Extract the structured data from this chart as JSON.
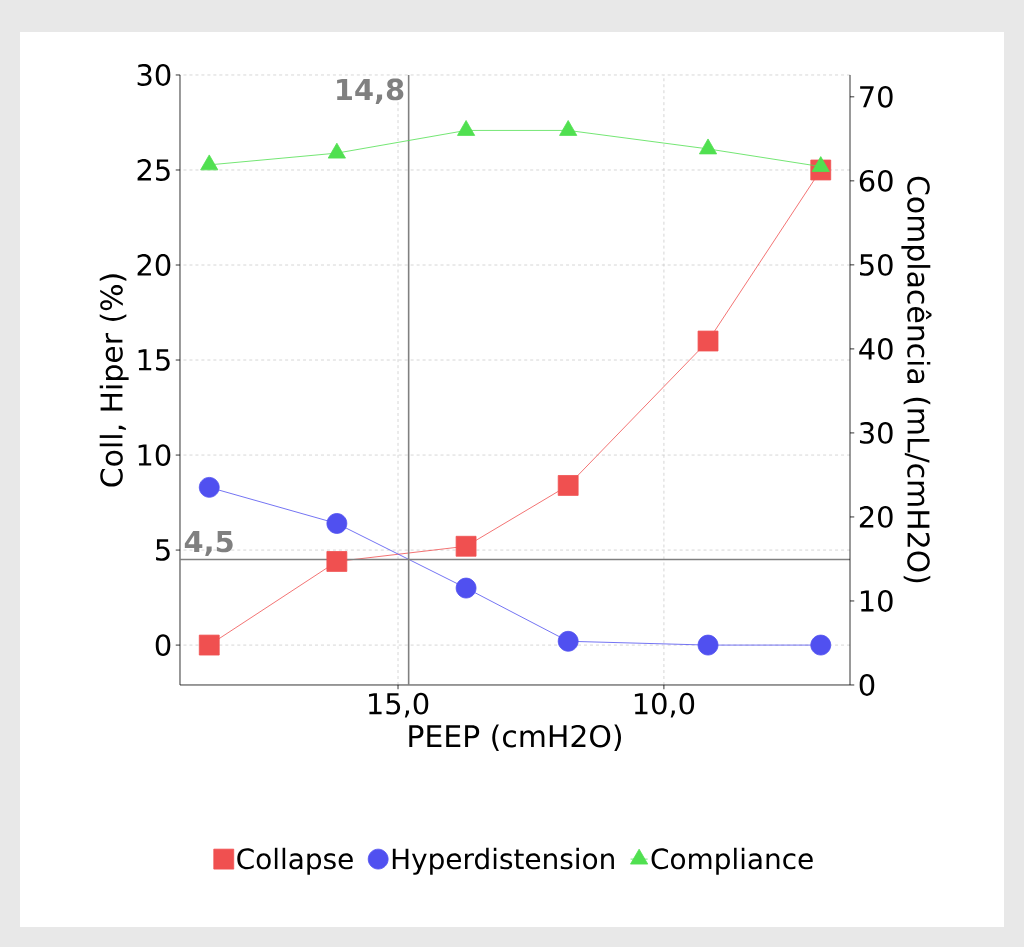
{
  "chart_data": {
    "type": "line",
    "xlabel": "PEEP (cmH2O)",
    "ylabel": "Coll, Hiper (%)",
    "y2label": "Complacência (mL/cmH2O)",
    "x": [
      18.55,
      16.15,
      13.72,
      11.8,
      9.17,
      7.05
    ],
    "series": [
      {
        "name": "Collapse",
        "color": "#f05050",
        "marker": "square",
        "values": [
          0,
          4.4,
          5.2,
          8.4,
          16,
          25
        ]
      },
      {
        "name": "Hyperdistension",
        "color": "#5050f0",
        "marker": "circle",
        "values": [
          8.3,
          6.4,
          3,
          0.2,
          0,
          0
        ]
      },
      {
        "name": "Compliance",
        "color": "#50e050",
        "marker": "triangle",
        "axis": "y2",
        "values": [
          61.9,
          63.3,
          66,
          66,
          63.8,
          61.7
        ]
      }
    ],
    "xlim": [
      19.1,
      6.5
    ],
    "xticks": [
      {
        "value": 15,
        "label": "15,0"
      },
      {
        "value": 10,
        "label": "10,0"
      }
    ],
    "ylim": [
      -2.1,
      30
    ],
    "yticks": [
      0,
      5,
      10,
      15,
      20,
      25,
      30
    ],
    "y2lim": [
      0,
      72.6
    ],
    "y2ticks": [
      0,
      10,
      20,
      30,
      40,
      50,
      60,
      70
    ],
    "ref_lines": [
      {
        "axis": "x",
        "value": 14.8,
        "label": "14,8",
        "color": "#808080"
      },
      {
        "axis": "y",
        "value": 4.5,
        "label": "4,5",
        "color": "#808080"
      }
    ],
    "grid": true,
    "legend": "bottom"
  }
}
